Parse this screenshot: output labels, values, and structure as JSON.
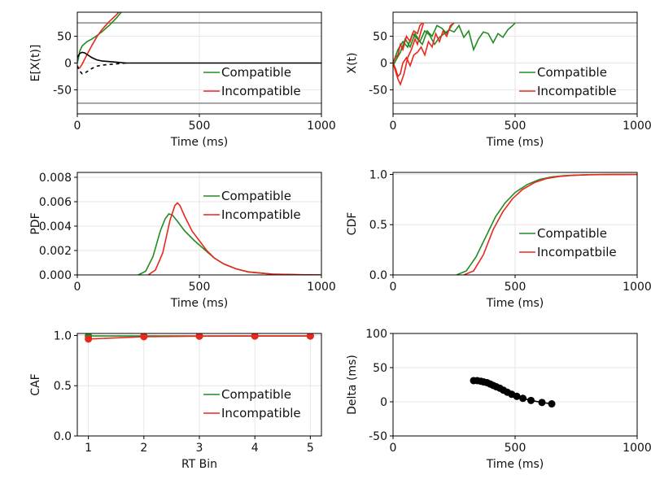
{
  "colors": {
    "compatible": "#228b22",
    "incompatible": "#e8271f",
    "black": "#000000",
    "bound": "#888888",
    "grid": "#e6e6e6"
  },
  "chart_data": [
    {
      "id": "expected-activation",
      "type": "line",
      "xlabel": "Time (ms)",
      "ylabel": "E[X(t)]",
      "xlim": [
        0,
        1000
      ],
      "ylim": [
        -95,
        95
      ],
      "xticks": [
        "0",
        "500",
        "1000"
      ],
      "yticks": [
        "-50",
        "0",
        "50"
      ],
      "grid": true,
      "legend": [
        "Compatible",
        "Incompatible"
      ],
      "hlines": [
        75,
        -75
      ],
      "series": [
        {
          "name": "Compatible",
          "color": "compatible",
          "x": [
            0,
            5,
            10,
            20,
            40,
            60,
            80,
            100,
            130,
            160,
            180
          ],
          "y": [
            0,
            10,
            22,
            32,
            40,
            45,
            51,
            58,
            70,
            84,
            95
          ]
        },
        {
          "name": "Incompatible",
          "color": "incompatible",
          "x": [
            0,
            5,
            10,
            20,
            30,
            40,
            60,
            80,
            100,
            130,
            160,
            170
          ],
          "y": [
            -5,
            -10,
            -9,
            -2,
            7,
            16,
            33,
            49,
            62,
            77,
            90,
            95
          ]
        },
        {
          "color": "black",
          "x": [
            0,
            10,
            20,
            30,
            40,
            60,
            80,
            100,
            150,
            200,
            300,
            1000
          ],
          "y": [
            10,
            18,
            20,
            19,
            16,
            10,
            6,
            4,
            2,
            0,
            0,
            0
          ]
        },
        {
          "color": "black",
          "dashed": true,
          "x": [
            0,
            10,
            20,
            30,
            40,
            60,
            80,
            100,
            150,
            200
          ],
          "y": [
            -5,
            -15,
            -20,
            -19,
            -16,
            -10,
            -6,
            -4,
            -2,
            0
          ]
        }
      ]
    },
    {
      "id": "sample-trials",
      "type": "line",
      "xlabel": "Time (ms)",
      "ylabel": "X(t)",
      "xlim": [
        0,
        1000
      ],
      "ylim": [
        -95,
        95
      ],
      "xticks": [
        "0",
        "500",
        "1000"
      ],
      "yticks": [
        "-50",
        "0",
        "50"
      ],
      "grid": true,
      "legend": [
        "Compatible",
        "Incompatible"
      ],
      "hlines": [
        75,
        -75
      ],
      "series": [
        {
          "name": "Compatible",
          "color": "compatible",
          "x": [
            0,
            15,
            30,
            50,
            70,
            90,
            110,
            130,
            150,
            170,
            190,
            210,
            230,
            250,
            270,
            290,
            310,
            330,
            350,
            370,
            390,
            410,
            430,
            450,
            470,
            490,
            500
          ],
          "y": [
            -5,
            8,
            20,
            45,
            30,
            55,
            40,
            60,
            52,
            35,
            48,
            55,
            62,
            58,
            70,
            48,
            60,
            25,
            45,
            58,
            55,
            38,
            55,
            48,
            62,
            70,
            75
          ]
        },
        {
          "color": "compatible",
          "x": [
            0,
            20,
            40,
            60,
            80,
            100,
            120,
            140,
            160,
            180,
            200,
            220,
            240,
            250
          ],
          "y": [
            0,
            25,
            40,
            30,
            55,
            45,
            35,
            60,
            50,
            70,
            65,
            55,
            70,
            75
          ]
        },
        {
          "name": "Incompatible",
          "color": "incompatible",
          "x": [
            0,
            10,
            20,
            30,
            45,
            60,
            75,
            90,
            100,
            115,
            125
          ],
          "y": [
            0,
            -15,
            -30,
            -40,
            -20,
            10,
            25,
            45,
            35,
            60,
            75
          ]
        },
        {
          "color": "incompatible",
          "x": [
            0,
            10,
            20,
            30,
            40,
            55,
            70,
            85,
            100,
            115,
            130,
            145,
            160,
            175,
            190,
            205,
            220,
            235,
            250
          ],
          "y": [
            0,
            -10,
            -25,
            -20,
            0,
            10,
            -5,
            15,
            20,
            30,
            15,
            40,
            30,
            55,
            40,
            60,
            50,
            70,
            75
          ]
        },
        {
          "color": "incompatible",
          "x": [
            0,
            10,
            20,
            30,
            40,
            55,
            70,
            85,
            100,
            110,
            120
          ],
          "y": [
            0,
            10,
            15,
            35,
            25,
            50,
            40,
            60,
            55,
            70,
            75
          ]
        }
      ]
    },
    {
      "id": "pdf",
      "type": "line",
      "xlabel": "Time (ms)",
      "ylabel": "PDF",
      "xlim": [
        0,
        1000
      ],
      "ylim": [
        0,
        0.0084
      ],
      "xticks": [
        "0",
        "500",
        "1000"
      ],
      "yticks": [
        "0.000",
        "0.002",
        "0.004",
        "0.006",
        "0.008"
      ],
      "grid": true,
      "legend": [
        "Compatible",
        "Incompatible"
      ],
      "series": [
        {
          "name": "Compatible",
          "color": "compatible",
          "x": [
            250,
            280,
            310,
            340,
            360,
            375,
            390,
            410,
            440,
            480,
            520,
            560,
            600,
            650,
            700,
            800,
            900,
            1000
          ],
          "y": [
            0,
            0.0003,
            0.0015,
            0.0036,
            0.0046,
            0.005,
            0.0049,
            0.0044,
            0.0036,
            0.0028,
            0.0021,
            0.0014,
            0.0009,
            0.0005,
            0.00025,
            6e-05,
            2e-05,
            0
          ]
        },
        {
          "name": "Incompatible",
          "color": "incompatible",
          "x": [
            290,
            320,
            350,
            380,
            400,
            410,
            420,
            440,
            470,
            500,
            530,
            560,
            600,
            650,
            700,
            800,
            900,
            1000
          ],
          "y": [
            0,
            0.0004,
            0.0018,
            0.0045,
            0.0057,
            0.0059,
            0.0057,
            0.0048,
            0.0036,
            0.0028,
            0.002,
            0.0014,
            0.0009,
            0.0005,
            0.00025,
            6e-05,
            2e-05,
            0
          ]
        }
      ]
    },
    {
      "id": "cdf",
      "type": "line",
      "xlabel": "Time (ms)",
      "ylabel": "CDF",
      "xlim": [
        0,
        1000
      ],
      "ylim": [
        0,
        1.02
      ],
      "xticks": [
        "0",
        "500",
        "1000"
      ],
      "yticks": [
        "0.0",
        "0.5",
        "1.0"
      ],
      "grid": true,
      "legend": [
        "Compatible",
        "Incompatbile"
      ],
      "series": [
        {
          "name": "Compatible",
          "color": "compatible",
          "x": [
            260,
            300,
            340,
            380,
            420,
            460,
            500,
            550,
            600,
            650,
            700,
            800,
            900,
            1000
          ],
          "y": [
            0,
            0.04,
            0.18,
            0.38,
            0.58,
            0.72,
            0.82,
            0.9,
            0.95,
            0.975,
            0.988,
            0.997,
            0.999,
            1.0
          ]
        },
        {
          "name": "Incompatbile",
          "color": "incompatible",
          "x": [
            290,
            330,
            370,
            410,
            450,
            490,
            530,
            580,
            630,
            680,
            730,
            800,
            900,
            1000
          ],
          "y": [
            0,
            0.04,
            0.2,
            0.45,
            0.63,
            0.76,
            0.85,
            0.92,
            0.96,
            0.98,
            0.99,
            0.997,
            0.999,
            1.0
          ]
        }
      ]
    },
    {
      "id": "caf",
      "type": "line",
      "xlabel": "RT Bin",
      "ylabel": "CAF",
      "xlim": [
        0.8,
        5.2
      ],
      "ylim": [
        0,
        1.02
      ],
      "xticks": [
        "1",
        "2",
        "3",
        "4",
        "5"
      ],
      "yticks": [
        "0.0",
        "0.5",
        "1.0"
      ],
      "grid": true,
      "legend": [
        "Compatible",
        "Incompatible"
      ],
      "series": [
        {
          "name": "Compatible",
          "color": "compatible",
          "markers": true,
          "x": [
            1,
            2,
            3,
            4,
            5
          ],
          "y": [
            0.995,
            0.995,
            0.995,
            0.995,
            0.995
          ]
        },
        {
          "name": "Incompatible",
          "color": "incompatible",
          "markers": true,
          "x": [
            1,
            2,
            3,
            4,
            5
          ],
          "y": [
            0.965,
            0.988,
            0.993,
            0.994,
            0.995
          ]
        }
      ]
    },
    {
      "id": "delta",
      "type": "scatter",
      "xlabel": "Time (ms)",
      "ylabel": "Delta (ms)",
      "xlim": [
        0,
        1000
      ],
      "ylim": [
        -50,
        100
      ],
      "xticks": [
        "0",
        "500",
        "1000"
      ],
      "yticks": [
        "-50",
        "0",
        "50",
        "100"
      ],
      "grid": true,
      "series": [
        {
          "color": "black",
          "markers": true,
          "x": [
            330,
            345,
            360,
            372,
            385,
            398,
            410,
            423,
            437,
            452,
            468,
            486,
            507,
            532,
            565,
            610,
            650
          ],
          "y": [
            31,
            31,
            30,
            29,
            28,
            26,
            24,
            22,
            20,
            17,
            14,
            11,
            8,
            5,
            2,
            -1,
            -3
          ]
        }
      ]
    }
  ]
}
